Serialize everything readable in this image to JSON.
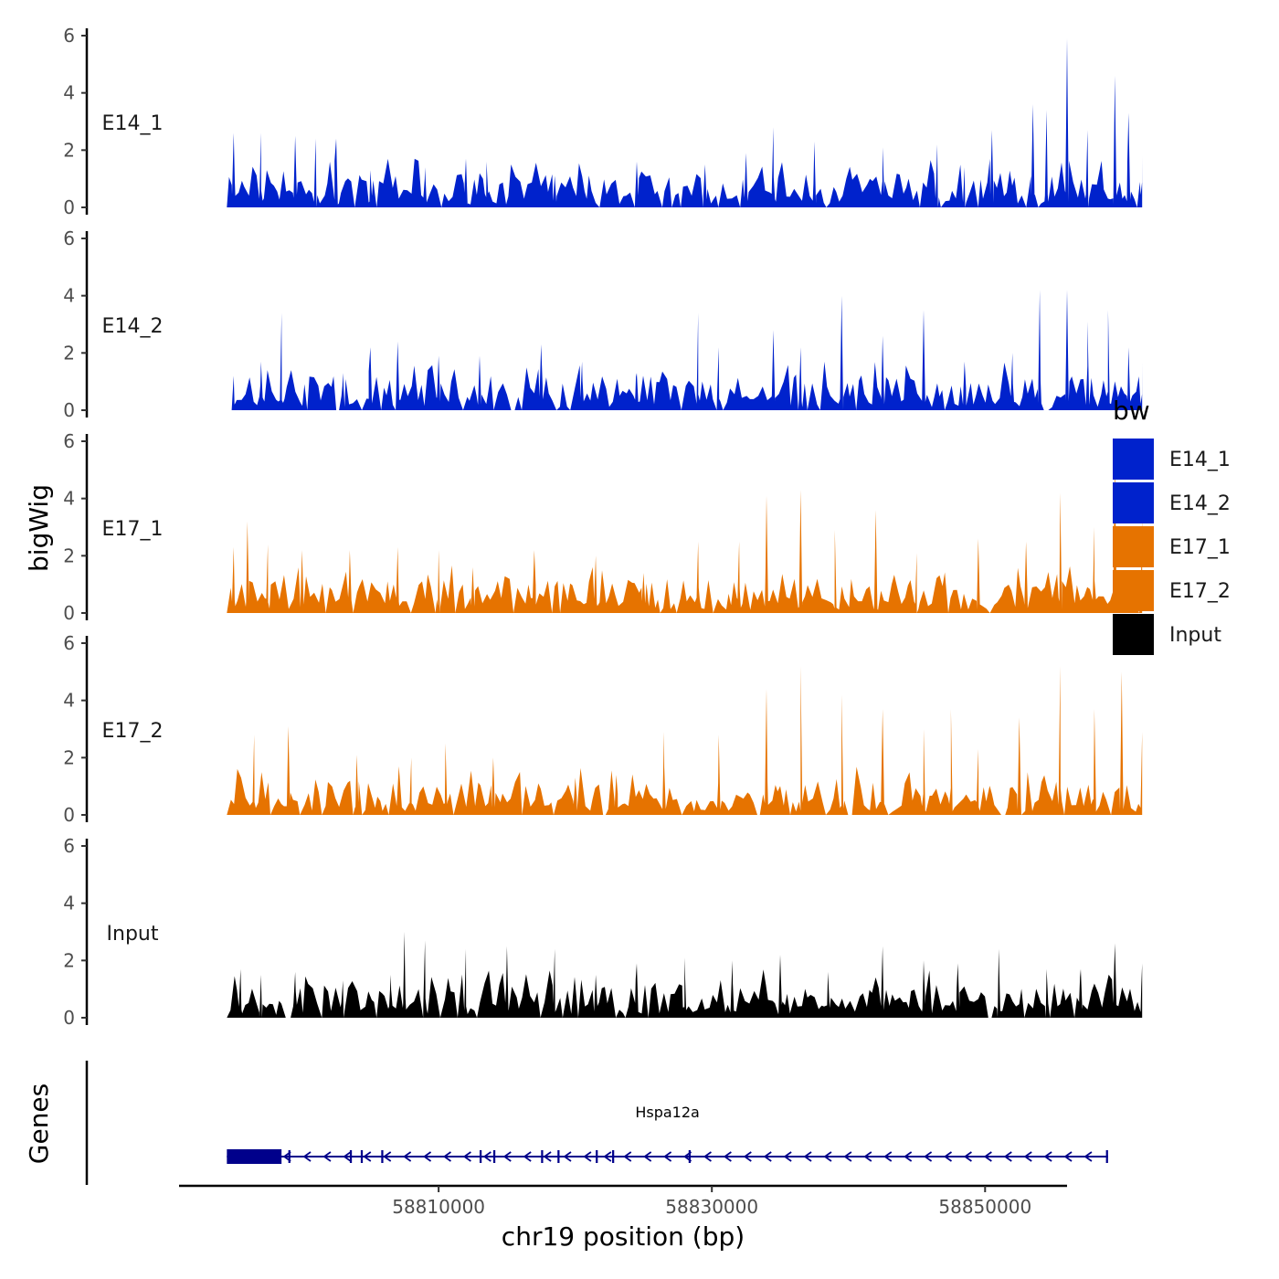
{
  "chart_data": {
    "type": "area",
    "title": "",
    "ylabel": "bigWig",
    "xlabel": "chr19 position (bp)",
    "genes_label": "Genes",
    "ylim": [
      0,
      6
    ],
    "y_ticks": [
      "0",
      "2",
      "4",
      "6"
    ],
    "xlim": [
      58791000,
      58856000
    ],
    "x_ticks": [
      {
        "value": 58810000,
        "label": "58810000"
      },
      {
        "value": 58830000,
        "label": "58830000"
      },
      {
        "value": 58850000,
        "label": "58850000"
      }
    ],
    "legend": {
      "title": "bw",
      "position": "right",
      "entries": [
        {
          "name": "E14_1",
          "color": "#0022cc"
        },
        {
          "name": "E14_2",
          "color": "#0022cc"
        },
        {
          "name": "E17_1",
          "color": "#e67300"
        },
        {
          "name": "E17_2",
          "color": "#e67300"
        },
        {
          "name": "Input",
          "color": "#000000"
        }
      ]
    },
    "tracks": [
      {
        "name": "E14_1",
        "color": "#0022cc",
        "x_start": 58794500,
        "x_end": 58861500,
        "peaks": [
          {
            "x": 58795000,
            "y": 2.6
          },
          {
            "x": 58797000,
            "y": 2.6
          },
          {
            "x": 58799500,
            "y": 2.5
          },
          {
            "x": 58801000,
            "y": 2.4
          },
          {
            "x": 58802500,
            "y": 2.4
          },
          {
            "x": 58805000,
            "y": 1.3
          },
          {
            "x": 58809000,
            "y": 1.4
          },
          {
            "x": 58812000,
            "y": 1.7
          },
          {
            "x": 58813500,
            "y": 1.6
          },
          {
            "x": 58818500,
            "y": 1.1
          },
          {
            "x": 58824500,
            "y": 1.6
          },
          {
            "x": 58829500,
            "y": 1.5
          },
          {
            "x": 58832500,
            "y": 1.9
          },
          {
            "x": 58834500,
            "y": 2.8
          },
          {
            "x": 58837500,
            "y": 2.3
          },
          {
            "x": 58842500,
            "y": 2.1
          },
          {
            "x": 58846500,
            "y": 2.2
          },
          {
            "x": 58848500,
            "y": 1.4
          },
          {
            "x": 58850500,
            "y": 2.7
          },
          {
            "x": 58853500,
            "y": 3.6
          },
          {
            "x": 58854500,
            "y": 3.4
          },
          {
            "x": 58856000,
            "y": 5.9
          },
          {
            "x": 58857500,
            "y": 2.7
          },
          {
            "x": 58859500,
            "y": 4.6
          },
          {
            "x": 58860500,
            "y": 3.3
          },
          {
            "x": 58861500,
            "y": 1.8
          }
        ]
      },
      {
        "name": "E14_2",
        "color": "#0022cc",
        "x_start": 58794500,
        "x_end": 58861500,
        "peaks": [
          {
            "x": 58795000,
            "y": 1.2
          },
          {
            "x": 58797000,
            "y": 1.7
          },
          {
            "x": 58798500,
            "y": 3.4
          },
          {
            "x": 58803000,
            "y": 1.3
          },
          {
            "x": 58805000,
            "y": 2.2
          },
          {
            "x": 58807000,
            "y": 2.4
          },
          {
            "x": 58810000,
            "y": 1.9
          },
          {
            "x": 58813000,
            "y": 1.9
          },
          {
            "x": 58817500,
            "y": 2.3
          },
          {
            "x": 58820500,
            "y": 1.7
          },
          {
            "x": 58824500,
            "y": 1.3
          },
          {
            "x": 58829000,
            "y": 3.4
          },
          {
            "x": 58830500,
            "y": 2.2
          },
          {
            "x": 58834500,
            "y": 2.8
          },
          {
            "x": 58836500,
            "y": 2.2
          },
          {
            "x": 58839500,
            "y": 4.0
          },
          {
            "x": 58842500,
            "y": 2.6
          },
          {
            "x": 58845500,
            "y": 3.5
          },
          {
            "x": 58848500,
            "y": 1.7
          },
          {
            "x": 58852000,
            "y": 2.0
          },
          {
            "x": 58854000,
            "y": 4.2
          },
          {
            "x": 58856000,
            "y": 4.2
          },
          {
            "x": 58857500,
            "y": 3.1
          },
          {
            "x": 58859000,
            "y": 3.5
          },
          {
            "x": 58860500,
            "y": 2.2
          },
          {
            "x": 58861500,
            "y": 1.7
          }
        ]
      },
      {
        "name": "E17_1",
        "color": "#e67300",
        "x_start": 58794500,
        "x_end": 58861500,
        "peaks": [
          {
            "x": 58795000,
            "y": 2.3
          },
          {
            "x": 58796000,
            "y": 3.2
          },
          {
            "x": 58797500,
            "y": 2.4
          },
          {
            "x": 58800000,
            "y": 2.2
          },
          {
            "x": 58803500,
            "y": 2.2
          },
          {
            "x": 58807000,
            "y": 2.3
          },
          {
            "x": 58810000,
            "y": 2.2
          },
          {
            "x": 58812500,
            "y": 1.6
          },
          {
            "x": 58817000,
            "y": 2.2
          },
          {
            "x": 58821500,
            "y": 2.0
          },
          {
            "x": 58825000,
            "y": 1.4
          },
          {
            "x": 58829000,
            "y": 2.5
          },
          {
            "x": 58832000,
            "y": 2.5
          },
          {
            "x": 58834000,
            "y": 4.1
          },
          {
            "x": 58836500,
            "y": 4.3
          },
          {
            "x": 58839000,
            "y": 2.9
          },
          {
            "x": 58842000,
            "y": 3.6
          },
          {
            "x": 58845000,
            "y": 2.1
          },
          {
            "x": 58849500,
            "y": 2.6
          },
          {
            "x": 58853000,
            "y": 2.5
          },
          {
            "x": 58855500,
            "y": 4.2
          },
          {
            "x": 58858000,
            "y": 3.0
          },
          {
            "x": 58859500,
            "y": 5.5
          },
          {
            "x": 58861500,
            "y": 3.5
          }
        ]
      },
      {
        "name": "E17_2",
        "color": "#e67300",
        "x_start": 58794500,
        "x_end": 58861500,
        "peaks": [
          {
            "x": 58796500,
            "y": 2.8
          },
          {
            "x": 58799000,
            "y": 3.1
          },
          {
            "x": 58804000,
            "y": 2.1
          },
          {
            "x": 58808000,
            "y": 2.0
          },
          {
            "x": 58810500,
            "y": 2.5
          },
          {
            "x": 58814000,
            "y": 2.0
          },
          {
            "x": 58820000,
            "y": 1.3
          },
          {
            "x": 58823000,
            "y": 1.4
          },
          {
            "x": 58826500,
            "y": 2.9
          },
          {
            "x": 58830500,
            "y": 2.8
          },
          {
            "x": 58834000,
            "y": 4.4
          },
          {
            "x": 58836500,
            "y": 5.2
          },
          {
            "x": 58839500,
            "y": 4.2
          },
          {
            "x": 58842500,
            "y": 3.7
          },
          {
            "x": 58845500,
            "y": 3.0
          },
          {
            "x": 58847500,
            "y": 3.7
          },
          {
            "x": 58849500,
            "y": 2.3
          },
          {
            "x": 58852500,
            "y": 3.4
          },
          {
            "x": 58855500,
            "y": 5.2
          },
          {
            "x": 58858000,
            "y": 3.7
          },
          {
            "x": 58860000,
            "y": 5.0
          },
          {
            "x": 58861500,
            "y": 2.9
          }
        ]
      },
      {
        "name": "Input",
        "color": "#000000",
        "x_start": 58794500,
        "x_end": 58861500,
        "peaks": [
          {
            "x": 58795500,
            "y": 1.7
          },
          {
            "x": 58797000,
            "y": 1.5
          },
          {
            "x": 58799500,
            "y": 1.6
          },
          {
            "x": 58803000,
            "y": 1.3
          },
          {
            "x": 58806500,
            "y": 1.5
          },
          {
            "x": 58807500,
            "y": 3.0
          },
          {
            "x": 58809000,
            "y": 2.7
          },
          {
            "x": 58812000,
            "y": 2.4
          },
          {
            "x": 58815000,
            "y": 2.5
          },
          {
            "x": 58818500,
            "y": 2.4
          },
          {
            "x": 58821500,
            "y": 1.5
          },
          {
            "x": 58824500,
            "y": 1.9
          },
          {
            "x": 58828000,
            "y": 2.1
          },
          {
            "x": 58831500,
            "y": 2.0
          },
          {
            "x": 58835000,
            "y": 2.2
          },
          {
            "x": 58838500,
            "y": 1.6
          },
          {
            "x": 58842500,
            "y": 2.5
          },
          {
            "x": 58845500,
            "y": 2.0
          },
          {
            "x": 58848000,
            "y": 1.9
          },
          {
            "x": 58851000,
            "y": 2.4
          },
          {
            "x": 58854500,
            "y": 1.7
          },
          {
            "x": 58857000,
            "y": 1.7
          },
          {
            "x": 58859500,
            "y": 2.6
          },
          {
            "x": 58861500,
            "y": 1.9
          }
        ]
      }
    ],
    "genes": [
      {
        "name": "Hspa12a",
        "start": 58794500,
        "end": 58859000,
        "strand": "-",
        "color": "#00008b",
        "exons": [
          [
            58794500,
            58798500
          ],
          [
            58799000,
            58799150
          ],
          [
            58803500,
            58803650
          ],
          [
            58804300,
            58804450
          ],
          [
            58805800,
            58805950
          ],
          [
            58813000,
            58813150
          ],
          [
            58814000,
            58814150
          ],
          [
            58817500,
            58817650
          ],
          [
            58818700,
            58818850
          ],
          [
            58821500,
            58821650
          ],
          [
            58822700,
            58822850
          ],
          [
            58828300,
            58828450
          ],
          [
            58858850,
            58859000
          ]
        ]
      }
    ]
  }
}
